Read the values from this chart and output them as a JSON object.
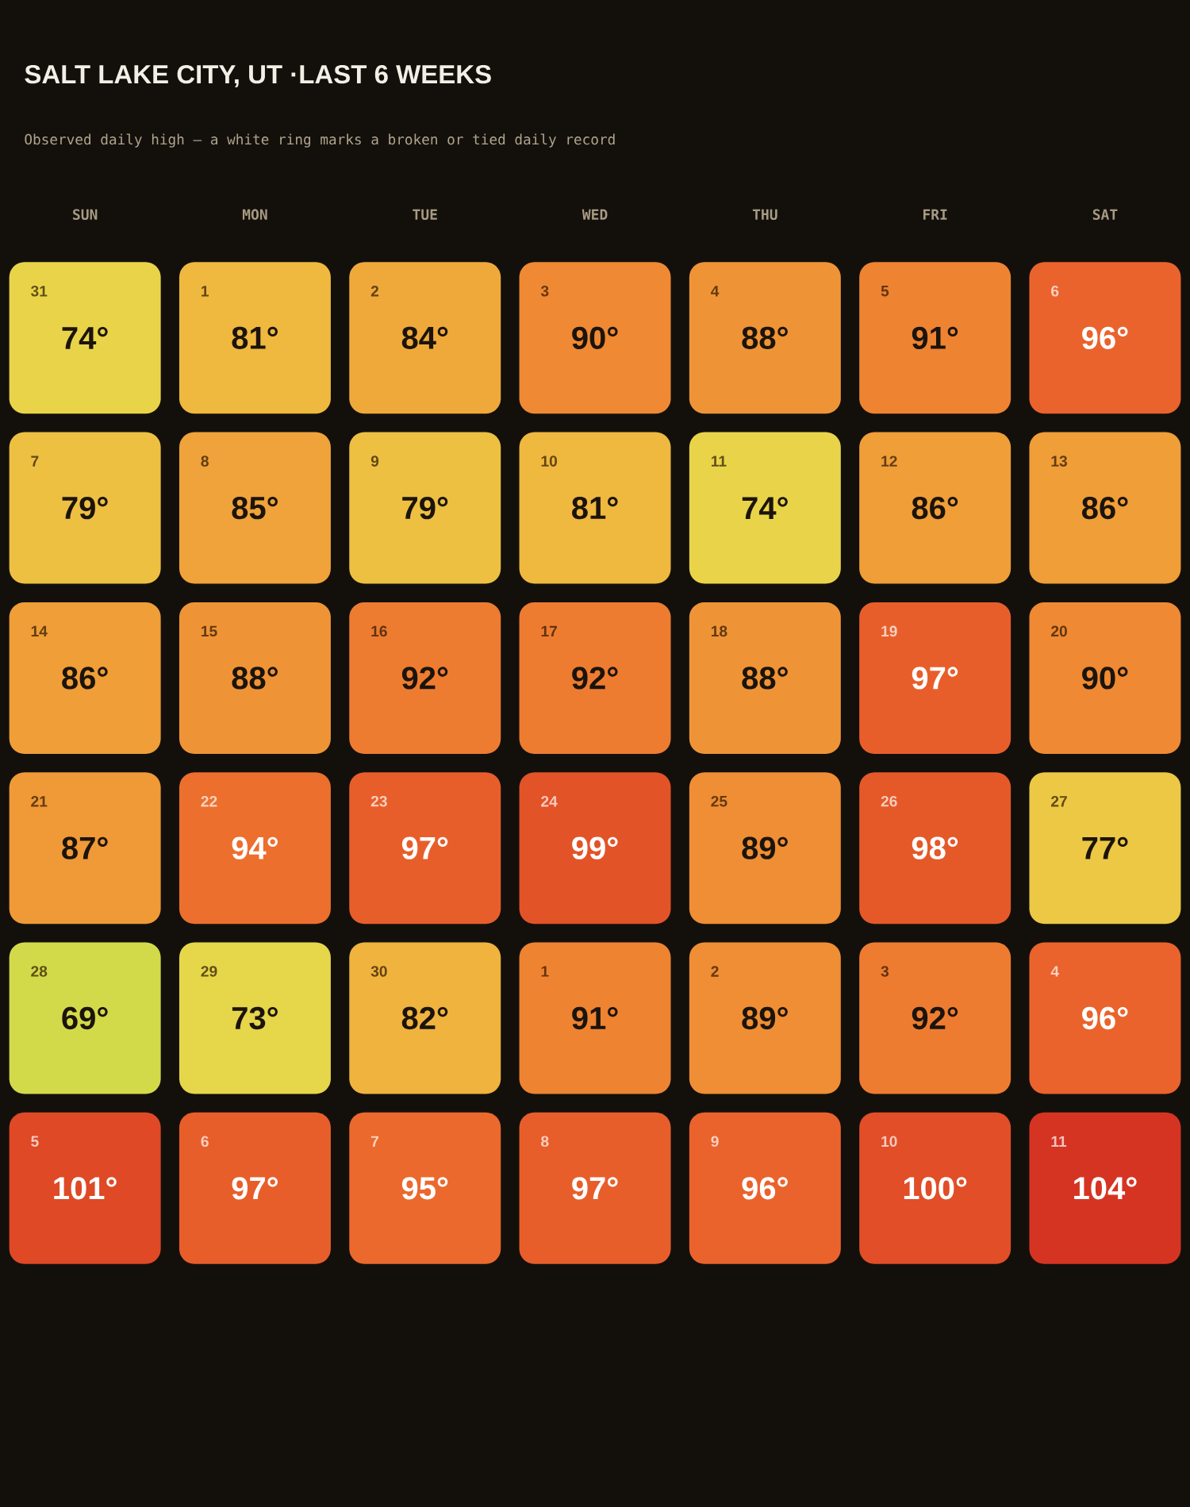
{
  "chart_data": {
    "type": "heatmap",
    "title": "SALT LAKE CITY, UT ·LAST 6 WEEKS",
    "subtitle": "Observed daily high — a white ring marks a broken or tied daily record",
    "categories": [
      "SUN",
      "MON",
      "TUE",
      "WED",
      "THU",
      "FRI",
      "SAT"
    ],
    "y_categories": [
      null,
      null,
      null,
      null,
      null,
      null
    ],
    "cells": [
      [
        74,
        81,
        84,
        90,
        88,
        91,
        96
      ],
      [
        79,
        85,
        79,
        81,
        74,
        86,
        86
      ],
      [
        86,
        88,
        92,
        92,
        88,
        97,
        90
      ],
      [
        87,
        94,
        97,
        99,
        89,
        98,
        77
      ],
      [
        69,
        73,
        82,
        91,
        89,
        92,
        96
      ],
      [
        101,
        97,
        95,
        97,
        96,
        100,
        104
      ]
    ],
    "cell_labels": [
      [
        "74°",
        "81°",
        "84°",
        "90°",
        "88°",
        "91°",
        "96°"
      ],
      [
        "79°",
        "85°",
        "79°",
        "81°",
        "74°",
        "86°",
        "86°"
      ],
      [
        "86°",
        "88°",
        "92°",
        "92°",
        "88°",
        "97°",
        "90°"
      ],
      [
        "87°",
        "94°",
        "97°",
        "99°",
        "89°",
        "98°",
        "77°"
      ],
      [
        "69°",
        "73°",
        "82°",
        "91°",
        "89°",
        "92°",
        "96°"
      ],
      [
        "101°",
        "97°",
        "95°",
        "97°",
        "96°",
        "100°",
        "104°"
      ]
    ],
    "annotations": [
      "31",
      "1",
      "2",
      "3",
      "4",
      "5",
      "6",
      "7",
      "8",
      "9",
      "10",
      "11",
      "12",
      "13",
      "14",
      "15",
      "16",
      "17",
      "18",
      "19",
      "20",
      "21",
      "22",
      "23",
      "24",
      "25",
      "26",
      "27",
      "28",
      "29",
      "30",
      "1",
      "2",
      "3",
      "4",
      "5",
      "6",
      "7",
      "8",
      "9",
      "10",
      "11"
    ]
  }
}
